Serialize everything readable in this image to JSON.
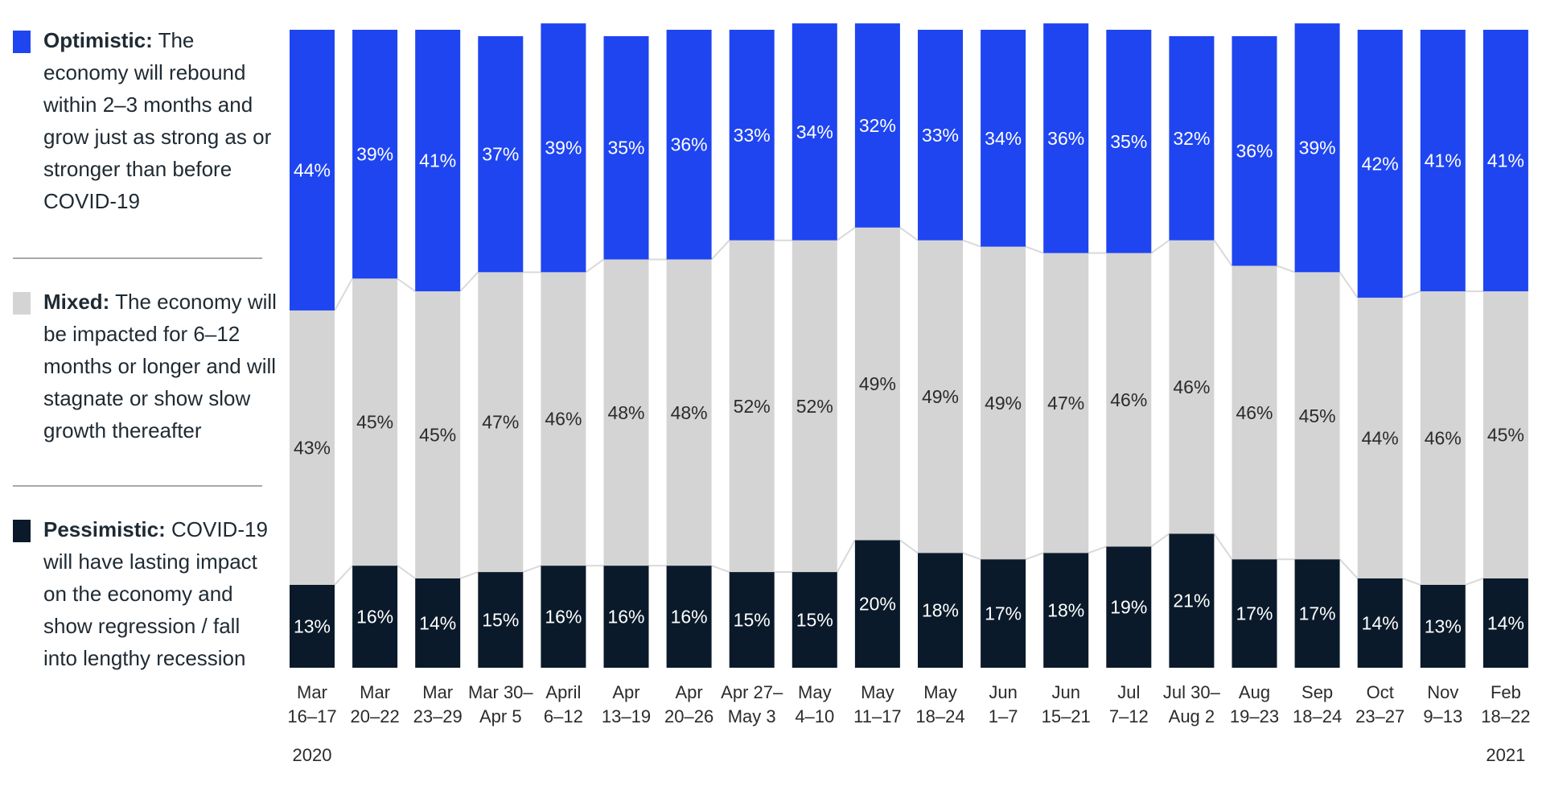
{
  "legend": [
    {
      "key": "optimistic",
      "title": "Optimistic:",
      "text": "The economy will rebound within 2–3 months and grow just as strong as or stronger than before COVID-19"
    },
    {
      "key": "mixed",
      "title": "Mixed:",
      "text": "The economy will be impacted for 6–12 months or longer and will stagnate or show slow growth thereafter"
    },
    {
      "key": "pessimistic",
      "title": "Pessimistic:",
      "text": "COVID-19 will have lasting impact on the economy and show regression / fall into lengthy recession"
    }
  ],
  "colors": {
    "optimistic": "#1f45f0",
    "mixed": "#d4d4d4",
    "pessimistic": "#0a1a2a",
    "separator": "#a8a8a8",
    "connector": "#d9d9d9"
  },
  "chart_data": {
    "type": "bar",
    "stacked": true,
    "normalized": true,
    "categories": [
      [
        "Mar",
        "16–17"
      ],
      [
        "Mar",
        "20–22"
      ],
      [
        "Mar",
        "23–29"
      ],
      [
        "Mar 30–",
        "Apr 5"
      ],
      [
        "April",
        "6–12"
      ],
      [
        "Apr",
        "13–19"
      ],
      [
        "Apr",
        "20–26"
      ],
      [
        "Apr 27–",
        "May 3"
      ],
      [
        "May",
        "4–10"
      ],
      [
        "May",
        "11–17"
      ],
      [
        "May",
        "18–24"
      ],
      [
        "Jun",
        "1–7"
      ],
      [
        "Jun",
        "15–21"
      ],
      [
        "Jul",
        "7–12"
      ],
      [
        "Jul 30–",
        "Aug 2"
      ],
      [
        "Aug",
        "19–23"
      ],
      [
        "Sep",
        "18–24"
      ],
      [
        "Oct",
        "23–27"
      ],
      [
        "Nov",
        "9–13"
      ],
      [
        "Feb",
        "18–22"
      ]
    ],
    "year_labels": {
      "first": "2020",
      "last": "2021"
    },
    "series": [
      {
        "key": "pessimistic",
        "values": [
          13,
          16,
          14,
          15,
          16,
          16,
          16,
          15,
          15,
          20,
          18,
          17,
          18,
          19,
          21,
          17,
          17,
          14,
          13,
          14
        ]
      },
      {
        "key": "mixed",
        "values": [
          43,
          45,
          45,
          47,
          46,
          48,
          48,
          52,
          52,
          49,
          49,
          49,
          47,
          46,
          46,
          46,
          45,
          44,
          46,
          45
        ]
      },
      {
        "key": "optimistic",
        "values": [
          44,
          39,
          41,
          37,
          39,
          35,
          36,
          33,
          34,
          32,
          33,
          34,
          36,
          35,
          32,
          36,
          39,
          42,
          41,
          41
        ]
      }
    ],
    "value_suffix": "%"
  }
}
